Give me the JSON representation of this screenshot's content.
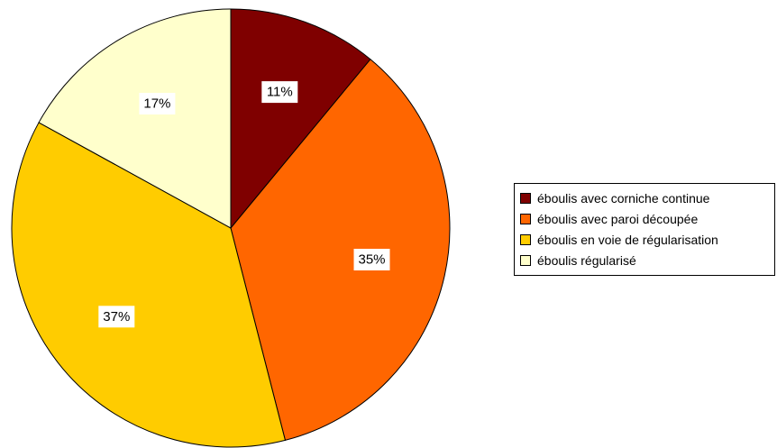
{
  "chart_data": {
    "type": "pie",
    "title": "",
    "legend_position": "right",
    "slices": [
      {
        "label": "éboulis avec corniche continue",
        "value": 11,
        "display": "11%",
        "color": "#7f0000"
      },
      {
        "label": "éboulis avec paroi découpée",
        "value": 35,
        "display": "35%",
        "color": "#ff6600"
      },
      {
        "label": "éboulis en voie de régularisation",
        "value": 37,
        "display": "37%",
        "color": "#ffcc00"
      },
      {
        "label": "éboulis régularisé",
        "value": 17,
        "display": "17%",
        "color": "#ffffcc"
      }
    ]
  }
}
